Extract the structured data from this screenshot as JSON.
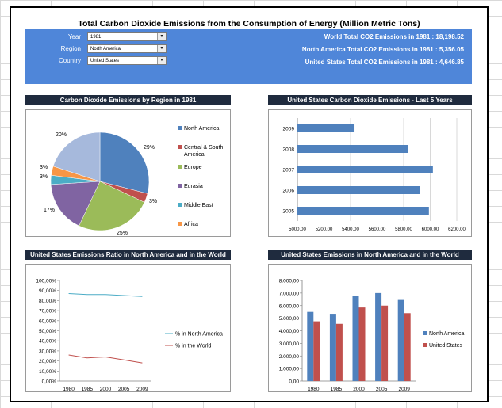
{
  "title": "Total Carbon Dioxide Emissions from the Consumption of Energy (Million Metric Tons)",
  "filters": {
    "year_label": "Year",
    "year_value": "1981",
    "region_label": "Region",
    "region_value": "North America",
    "country_label": "Country",
    "country_value": "United States"
  },
  "stats": {
    "world": "World Total CO2 Emissions in 1981 :  18,198.52",
    "region": "North America Total CO2 Emissions in 1981 :  5,356.05",
    "country": "United States Total CO2 Emissions in 1981 :  4,646.85"
  },
  "chart_titles": {
    "pie": "Carbon Dioxide Emissions by Region in 1981",
    "hbar": "United States Carbon Dioxide Emissions - Last 5 Years",
    "line": "United States Emissions Ratio in North America and in the World",
    "vbar": "United States Emissions in North America and in the World"
  },
  "colors": {
    "banner": "#4f86d9",
    "title_bar": "#1f2b3e",
    "north_america": "#4f81bd",
    "central_south_america": "#c0504d",
    "europe": "#9bbb59",
    "eurasia": "#8064a2",
    "middle_east": "#4bacc6",
    "africa": "#f79646",
    "asia_oceania": "#a6b9dc"
  },
  "chart_data": [
    {
      "type": "pie",
      "title": "Carbon Dioxide Emissions by Region in 1981",
      "slices": [
        {
          "name": "North America",
          "value": 29,
          "label": "29%"
        },
        {
          "name": "Central & South America",
          "value": 3,
          "label": "3%"
        },
        {
          "name": "Europe",
          "value": 25,
          "label": "25%"
        },
        {
          "name": "Eurasia",
          "value": 17,
          "label": "17%"
        },
        {
          "name": "Middle East",
          "value": 3,
          "label": "3%"
        },
        {
          "name": "Africa",
          "value": 3,
          "label": "3%"
        },
        {
          "value": 20,
          "label": "20%"
        }
      ],
      "legend": [
        "North America",
        "Central & South America",
        "Europe",
        "Eurasia",
        "Middle East",
        "Africa"
      ]
    },
    {
      "type": "bar",
      "orientation": "horizontal",
      "title": "United States Carbon Dioxide Emissions - Last 5 Years",
      "categories": [
        "2005",
        "2006",
        "2007",
        "2008",
        "2009"
      ],
      "values": [
        5990,
        5920,
        6020,
        5830,
        5430
      ],
      "xlim": [
        5000,
        6200
      ],
      "ticks": [
        "5000,00",
        "5200,00",
        "5400,00",
        "5600,00",
        "5800,00",
        "6000,00",
        "6200,00"
      ]
    },
    {
      "type": "line",
      "title": "United States Emissions Ratio in North America and in the World",
      "x": [
        "1980",
        "1985",
        "2000",
        "2005",
        "2009"
      ],
      "series": [
        {
          "name": "% in North America",
          "values": [
            87,
            86,
            86,
            85,
            84
          ]
        },
        {
          "name": "% in the World",
          "values": [
            26,
            23,
            24,
            21,
            18
          ]
        }
      ],
      "ylim": [
        0,
        100
      ],
      "ticks": [
        "0,00%",
        "10,00%",
        "20,00%",
        "30,00%",
        "40,00%",
        "50,00%",
        "60,00%",
        "70,00%",
        "80,00%",
        "90,00%",
        "100,00%"
      ]
    },
    {
      "type": "bar",
      "title": "United States Emissions in North America and in the World",
      "categories": [
        "1980",
        "1985",
        "2000",
        "2005",
        "2009"
      ],
      "series": [
        {
          "name": "North America",
          "values": [
            5500,
            5350,
            6800,
            7000,
            6450
          ]
        },
        {
          "name": "United States",
          "values": [
            4750,
            4550,
            5850,
            6000,
            5400
          ]
        }
      ],
      "ylim": [
        0,
        8000
      ],
      "ticks": [
        "0,00",
        "1.000,00",
        "2.000,00",
        "3.000,00",
        "4.000,00",
        "5.000,00",
        "6.000,00",
        "7.000,00",
        "8.000,00"
      ]
    }
  ]
}
